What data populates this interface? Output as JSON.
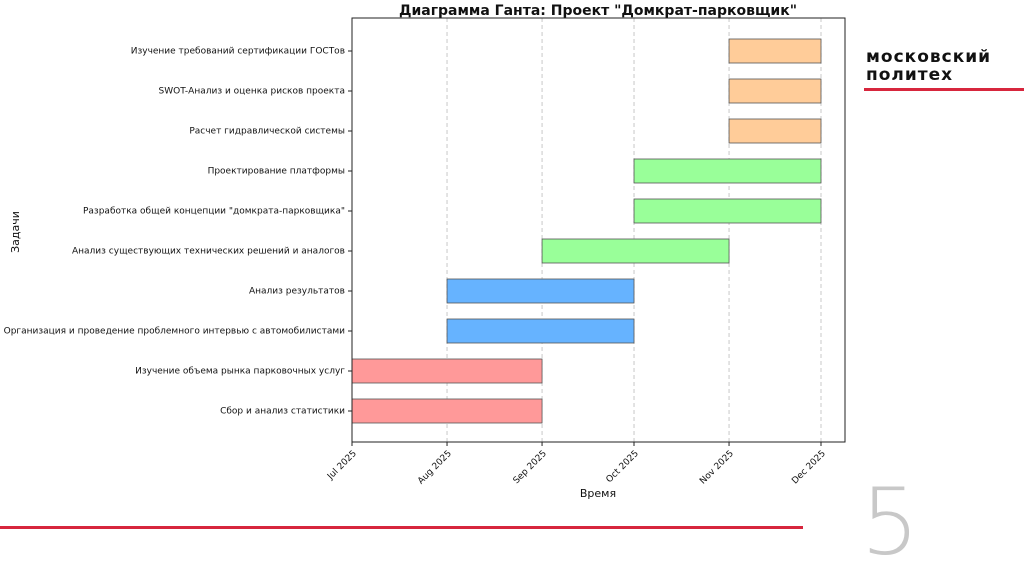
{
  "chart_data": {
    "type": "gantt",
    "title": "Диаграмма Ганта: Проект \"Домкрат-парковщик\"",
    "x_label": "Время",
    "y_label": "Задачи",
    "tasks": [
      {
        "name": "Сбор и анализ статистики",
        "start": "2025-07",
        "end": "2025-09",
        "color": "#ff9999"
      },
      {
        "name": "Изучение объема рынка парковочных услуг",
        "start": "2025-07",
        "end": "2025-09",
        "color": "#ff9999"
      },
      {
        "name": "Организация и проведение проблемного интервью с автомобилистами",
        "start": "2025-08",
        "end": "2025-10",
        "color": "#66b3ff"
      },
      {
        "name": "Анализ результатов",
        "start": "2025-08",
        "end": "2025-10",
        "color": "#66b3ff"
      },
      {
        "name": "Анализ существующих технических решений и аналогов",
        "start": "2025-09",
        "end": "2025-11",
        "color": "#99ff99"
      },
      {
        "name": "Разработка общей концепции \"домкрата-парковщика\"",
        "start": "2025-10",
        "end": "2025-12",
        "color": "#99ff99"
      },
      {
        "name": "Проектирование платформы",
        "start": "2025-10",
        "end": "2025-12",
        "color": "#99ff99"
      },
      {
        "name": "Расчет гидравлической системы",
        "start": "2025-11",
        "end": "2025-12",
        "color": "#ffcc99"
      },
      {
        "name": "SWOT-Анализ и оценка рисков проекта",
        "start": "2025-11",
        "end": "2025-12",
        "color": "#ffcc99"
      },
      {
        "name": "Изучение требований сертификации ГОСТов",
        "start": "2025-11",
        "end": "2025-12",
        "color": "#ffcc99"
      }
    ],
    "xlim": [
      "2025-07",
      "2025-12"
    ],
    "xticks": [
      {
        "value": "2025-07",
        "label": "Jul 2025"
      },
      {
        "value": "2025-08",
        "label": "Aug 2025"
      },
      {
        "value": "2025-09",
        "label": "Sep 2025"
      },
      {
        "value": "2025-10",
        "label": "Oct 2025"
      },
      {
        "value": "2025-11",
        "label": "Nov 2025"
      },
      {
        "value": "2025-12",
        "label": "Dec 2025"
      }
    ],
    "grid": true
  },
  "slide": {
    "logo": [
      "московский",
      "политех"
    ],
    "page_number": "5"
  }
}
